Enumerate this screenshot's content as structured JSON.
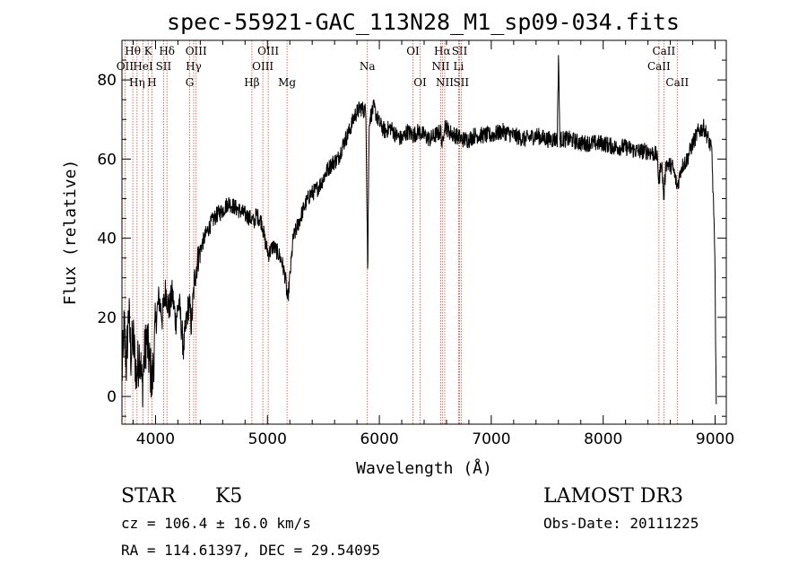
{
  "chart_data": {
    "type": "line",
    "title": "spec-55921-GAC_113N28_M1_sp09-034.fits",
    "xlabel": "Wavelength (Å)",
    "ylabel": "Flux (relative)",
    "xlim": [
      3700,
      9100
    ],
    "ylim": [
      -7,
      90
    ],
    "x_ticks": [
      4000,
      5000,
      6000,
      7000,
      8000,
      9000
    ],
    "y_ticks": [
      0,
      20,
      40,
      60,
      80
    ],
    "spectrum_anchors": [
      [
        3700,
        5
      ],
      [
        3720,
        18
      ],
      [
        3740,
        8
      ],
      [
        3760,
        22
      ],
      [
        3780,
        10
      ],
      [
        3800,
        15
      ],
      [
        3830,
        5
      ],
      [
        3860,
        12
      ],
      [
        3880,
        2
      ],
      [
        3900,
        10
      ],
      [
        3920,
        15
      ],
      [
        3950,
        8
      ],
      [
        3970,
        3
      ],
      [
        4000,
        18
      ],
      [
        4030,
        25
      ],
      [
        4060,
        20
      ],
      [
        4090,
        27
      ],
      [
        4120,
        22
      ],
      [
        4150,
        26
      ],
      [
        4180,
        19
      ],
      [
        4210,
        24
      ],
      [
        4250,
        12
      ],
      [
        4280,
        20
      ],
      [
        4300,
        24
      ],
      [
        4320,
        18
      ],
      [
        4350,
        30
      ],
      [
        4380,
        35
      ],
      [
        4410,
        38
      ],
      [
        4450,
        41
      ],
      [
        4500,
        44
      ],
      [
        4550,
        46
      ],
      [
        4600,
        47
      ],
      [
        4650,
        49
      ],
      [
        4700,
        48
      ],
      [
        4750,
        47
      ],
      [
        4800,
        46
      ],
      [
        4850,
        45
      ],
      [
        4880,
        44
      ],
      [
        4900,
        46
      ],
      [
        4950,
        44
      ],
      [
        4980,
        39
      ],
      [
        5010,
        36
      ],
      [
        5050,
        38
      ],
      [
        5100,
        36
      ],
      [
        5130,
        34
      ],
      [
        5160,
        30
      ],
      [
        5180,
        24
      ],
      [
        5200,
        30
      ],
      [
        5230,
        40
      ],
      [
        5280,
        44
      ],
      [
        5330,
        48
      ],
      [
        5380,
        51
      ],
      [
        5430,
        52
      ],
      [
        5480,
        54
      ],
      [
        5530,
        57
      ],
      [
        5580,
        59
      ],
      [
        5630,
        60
      ],
      [
        5680,
        64
      ],
      [
        5730,
        67
      ],
      [
        5780,
        71
      ],
      [
        5830,
        73
      ],
      [
        5880,
        72
      ],
      [
        5893,
        40
      ],
      [
        5896,
        29
      ],
      [
        5900,
        45
      ],
      [
        5910,
        70
      ],
      [
        5950,
        73
      ],
      [
        6000,
        69
      ],
      [
        6050,
        67
      ],
      [
        6100,
        68
      ],
      [
        6150,
        66
      ],
      [
        6200,
        65
      ],
      [
        6250,
        67
      ],
      [
        6300,
        66
      ],
      [
        6350,
        67
      ],
      [
        6400,
        66
      ],
      [
        6450,
        65
      ],
      [
        6500,
        66
      ],
      [
        6550,
        67
      ],
      [
        6563,
        63
      ],
      [
        6580,
        69
      ],
      [
        6620,
        67
      ],
      [
        6680,
        66
      ],
      [
        6740,
        65
      ],
      [
        6800,
        65
      ],
      [
        6850,
        66
      ],
      [
        6900,
        66
      ],
      [
        7000,
        66
      ],
      [
        7100,
        67
      ],
      [
        7200,
        66
      ],
      [
        7300,
        65
      ],
      [
        7400,
        66
      ],
      [
        7500,
        65
      ],
      [
        7590,
        65
      ],
      [
        7601,
        88
      ],
      [
        7612,
        65
      ],
      [
        7700,
        65
      ],
      [
        7800,
        64
      ],
      [
        7900,
        64
      ],
      [
        8000,
        64
      ],
      [
        8100,
        63
      ],
      [
        8200,
        63
      ],
      [
        8300,
        62
      ],
      [
        8400,
        62
      ],
      [
        8480,
        61
      ],
      [
        8498,
        54
      ],
      [
        8520,
        60
      ],
      [
        8542,
        50
      ],
      [
        8560,
        59
      ],
      [
        8620,
        58
      ],
      [
        8662,
        53
      ],
      [
        8700,
        58
      ],
      [
        8750,
        60
      ],
      [
        8800,
        64
      ],
      [
        8850,
        67
      ],
      [
        8900,
        68
      ],
      [
        8940,
        65
      ],
      [
        8970,
        62
      ],
      [
        8990,
        45
      ],
      [
        9000,
        30
      ],
      [
        9005,
        10
      ],
      [
        9010,
        0
      ]
    ],
    "emission_lines": [
      {
        "label": "Hθ",
        "wave": 3797,
        "row": 1
      },
      {
        "label": "OII",
        "wave": 3727,
        "row": 2
      },
      {
        "label": "Hη",
        "wave": 3835,
        "row": 3
      },
      {
        "label": "K",
        "wave": 3934,
        "row": 1
      },
      {
        "label": "HeI",
        "wave": 3889,
        "row": 2
      },
      {
        "label": "H",
        "wave": 3968,
        "row": 3
      },
      {
        "label": "Hδ",
        "wave": 4102,
        "row": 1
      },
      {
        "label": "SII",
        "wave": 4072,
        "row": 2
      },
      {
        "label": "OIII",
        "wave": 4363,
        "row": 1
      },
      {
        "label": "Hγ",
        "wave": 4341,
        "row": 2
      },
      {
        "label": "G",
        "wave": 4305,
        "row": 3
      },
      {
        "label": "Hβ",
        "wave": 4861,
        "row": 3
      },
      {
        "label": "OIII",
        "wave": 5007,
        "row": 1
      },
      {
        "label": "OIII",
        "wave": 4959,
        "row": 2
      },
      {
        "label": "Mg",
        "wave": 5175,
        "row": 3
      },
      {
        "label": "Na",
        "wave": 5893,
        "row": 2
      },
      {
        "label": "OI",
        "wave": 6300,
        "row": 1
      },
      {
        "label": "OI",
        "wave": 6364,
        "row": 3
      },
      {
        "label": "Hα",
        "wave": 6563,
        "row": 1
      },
      {
        "label": "NII",
        "wave": 6548,
        "row": 2
      },
      {
        "label": "NII",
        "wave": 6584,
        "row": 3
      },
      {
        "label": "SII",
        "wave": 6717,
        "row": 1
      },
      {
        "label": "Li",
        "wave": 6708,
        "row": 2
      },
      {
        "label": "SII",
        "wave": 6731,
        "row": 3
      },
      {
        "label": "CaII",
        "wave": 8542,
        "row": 1
      },
      {
        "label": "CaII",
        "wave": 8498,
        "row": 2
      },
      {
        "label": "CaII",
        "wave": 8662,
        "row": 3
      }
    ]
  },
  "info": {
    "class": "STAR",
    "subclass": "K5",
    "survey": "LAMOST DR3",
    "cz": "cz = 106.4 ± 16.0 km/s",
    "obs_date": "Obs-Date: 20111225",
    "coords": "RA = 114.61397, DEC =  29.54095"
  }
}
